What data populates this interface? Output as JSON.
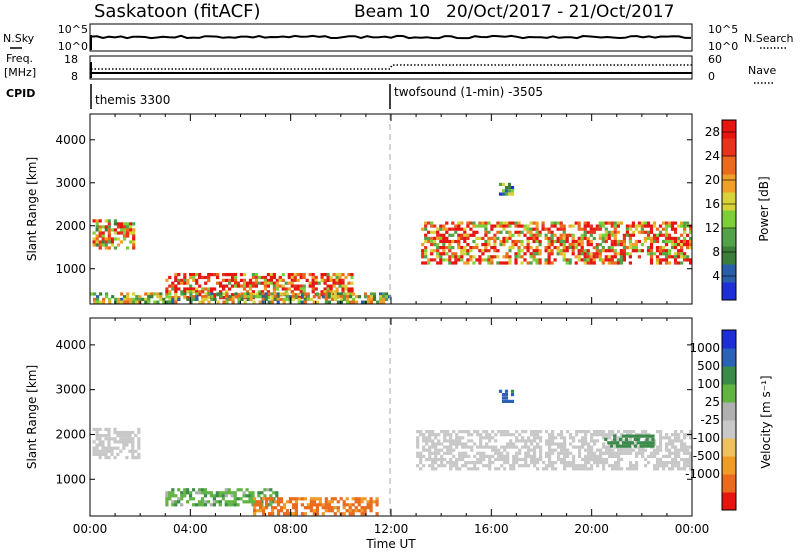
{
  "header": {
    "station": "Saskatoon (fitACF)",
    "beam": "Beam 10",
    "dates": "20/Oct/2017 - 21/Oct/2017"
  },
  "colors": {
    "power": [
      "#1f2fd8",
      "#2a5ea8",
      "#3b7d3b",
      "#52a24a",
      "#7ccf39",
      "#d8d23a",
      "#f0a028",
      "#ea6a1e",
      "#e8321c",
      "#e81410"
    ],
    "velocity": [
      "#e81410",
      "#ea6a1e",
      "#f09a28",
      "#f0c060",
      "#c8c8c8",
      "#b0b0b0",
      "#62b442",
      "#3a8a4a",
      "#2a62b8",
      "#1f2fd8"
    ],
    "noise_line": "#000000",
    "dashed": "#aaaaaa"
  },
  "labels": {
    "nsky": "N.Sky",
    "nsearch": "N.Search",
    "freq": "Freq.",
    "mhz": "[MHz]",
    "nave": "Nave",
    "cpid": "CPID",
    "cpid_1": "themis 3300",
    "cpid_2": "twofsound (1-min) -3505",
    "xlabel": "Time UT",
    "ylabel_power": "Slant Range [km]",
    "ylabel_vel": "Slant Range [km]",
    "cbar_power": "Power [dB]",
    "cbar_vel": "Velocity [m s⁻¹]",
    "tick_noise_top": "10^5",
    "tick_noise_bottom": "10^0",
    "tick_freq_top": "18",
    "tick_freq_bottom": "8",
    "tick_nave_top": "60",
    "tick_nave_bottom": "0"
  },
  "chart_data": [
    {
      "type": "heatmap",
      "title": "Power",
      "xlabel": "Time UT",
      "ylabel": "Slant Range [km]",
      "xlim": [
        0,
        24
      ],
      "ylim": [
        180,
        4600
      ],
      "x_ticks": [
        "00:00",
        "04:00",
        "08:00",
        "12:00",
        "16:00",
        "20:00",
        "00:00"
      ],
      "y_ticks": [
        1000,
        2000,
        3000,
        4000
      ],
      "colorbar": {
        "label": "Power [dB]",
        "ticks": [
          4,
          8,
          12,
          16,
          20,
          24,
          28
        ],
        "range": [
          0,
          30
        ]
      },
      "regions": [
        {
          "t0": 0.1,
          "t1": 1.8,
          "r0": 1450,
          "r1": 2150,
          "value": 20
        },
        {
          "t0": 13.2,
          "t1": 24.0,
          "r0": 1100,
          "r1": 2100,
          "value": 22
        },
        {
          "t0": 3.0,
          "t1": 10.5,
          "r0": 300,
          "r1": 900,
          "value": 25
        },
        {
          "t0": 0.0,
          "t1": 12.0,
          "r0": 200,
          "r1": 450,
          "value": 14
        },
        {
          "t0": 16.3,
          "t1": 16.9,
          "r0": 2700,
          "r1": 3000,
          "value": 10
        }
      ]
    },
    {
      "type": "heatmap",
      "title": "Velocity",
      "xlabel": "Time UT",
      "ylabel": "Slant Range [km]",
      "xlim": [
        0,
        24
      ],
      "ylim": [
        180,
        4600
      ],
      "x_ticks": [
        "00:00",
        "04:00",
        "08:00",
        "12:00",
        "16:00",
        "20:00",
        "00:00"
      ],
      "y_ticks": [
        1000,
        2000,
        3000,
        4000
      ],
      "colorbar": {
        "label": "Velocity [m s⁻¹]",
        "ticks": [
          1000,
          500,
          100,
          25,
          -25,
          -100,
          -500,
          -1000
        ]
      },
      "regions": [
        {
          "t0": 0.1,
          "t1": 2.0,
          "r0": 1450,
          "r1": 2150,
          "value": 0
        },
        {
          "t0": 13.0,
          "t1": 24.0,
          "r0": 1200,
          "r1": 2100,
          "value": 0
        },
        {
          "t0": 3.0,
          "t1": 7.5,
          "r0": 400,
          "r1": 800,
          "value": 80
        },
        {
          "t0": 6.5,
          "t1": 11.5,
          "r0": 200,
          "r1": 600,
          "value": -120
        },
        {
          "t0": 16.3,
          "t1": 16.9,
          "r0": 2700,
          "r1": 3000,
          "value": 600
        },
        {
          "t0": 20.5,
          "t1": 22.5,
          "r0": 1700,
          "r1": 2000,
          "value": 200
        }
      ]
    }
  ]
}
